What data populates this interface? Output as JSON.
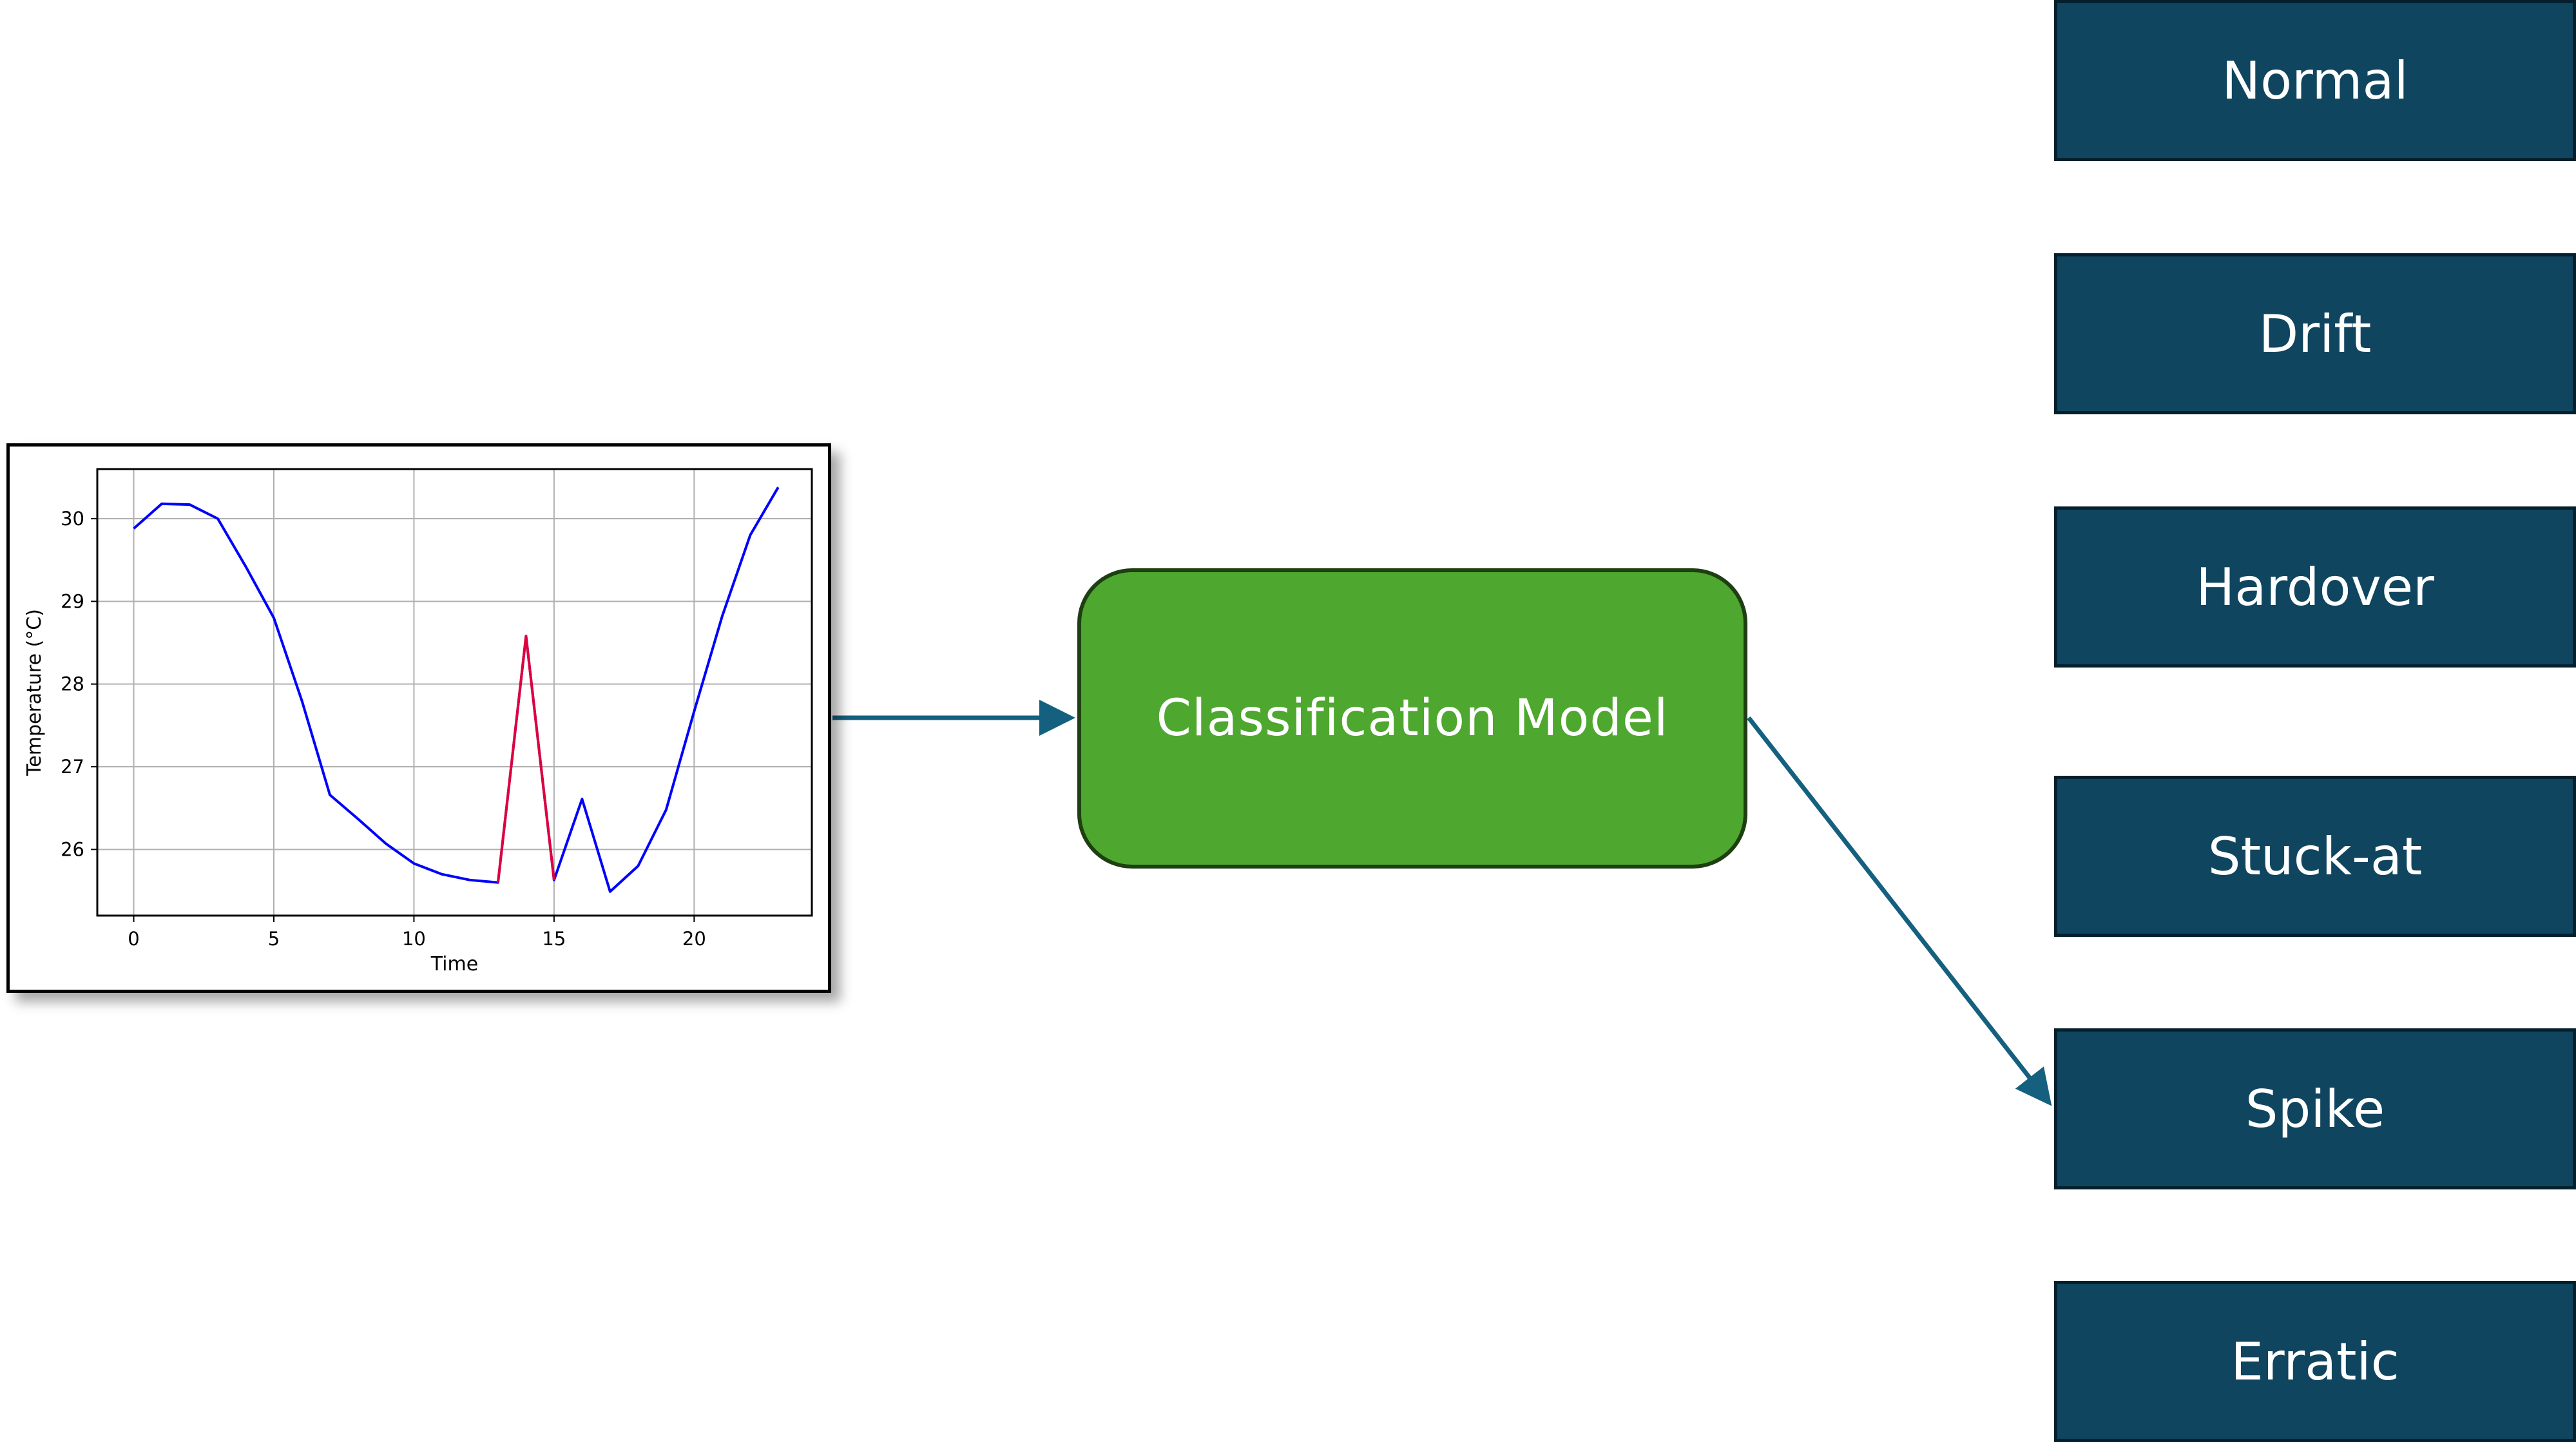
{
  "model": {
    "label": "Classification Model"
  },
  "classes": [
    {
      "label": "Normal"
    },
    {
      "label": "Drift"
    },
    {
      "label": "Hardover"
    },
    {
      "label": "Stuck-at"
    },
    {
      "label": "Spike"
    },
    {
      "label": "Erratic"
    }
  ],
  "selected_class": "Spike",
  "colors": {
    "arrow": "#15607f",
    "model_fill": "#4ea72e",
    "class_fill": "#10455f",
    "normal_line": "#0000ff",
    "fault_line": "#e0003a"
  },
  "chart_data": {
    "type": "line",
    "xlabel": "Time",
    "ylabel": "Temperature (°C)",
    "xlim": [
      -1.3,
      24.2
    ],
    "ylim": [
      25.2,
      30.6
    ],
    "xticks": [
      0,
      5,
      10,
      15,
      20
    ],
    "yticks": [
      26,
      27,
      28,
      29,
      30
    ],
    "grid": true,
    "series": [
      {
        "color": "#0000ff",
        "x": [
          0,
          1,
          2,
          3,
          4,
          5,
          6,
          7,
          8,
          9,
          10,
          11,
          12,
          13,
          14,
          15,
          16,
          17,
          18,
          19,
          20,
          21,
          22,
          23
        ],
        "y": [
          29.88,
          30.18,
          30.17,
          30.0,
          29.42,
          28.8,
          27.8,
          26.66,
          26.37,
          26.07,
          25.83,
          25.7,
          25.63,
          25.6,
          28.58,
          25.63,
          26.61,
          25.49,
          25.8,
          26.48,
          27.67,
          28.82,
          29.8,
          30.38
        ]
      },
      {
        "color": "#e0003a",
        "x": [
          13,
          14,
          15
        ],
        "y": [
          25.6,
          28.58,
          25.63
        ]
      }
    ]
  }
}
